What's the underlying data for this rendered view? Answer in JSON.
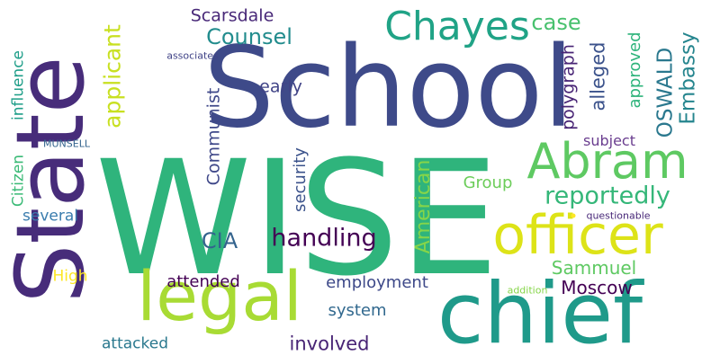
{
  "words": [
    {
      "id": "wise",
      "text": "WISE",
      "color": "#2fb47c"
    },
    {
      "id": "school",
      "text": "School",
      "color": "#3e4a89"
    },
    {
      "id": "state",
      "text": "State",
      "color": "#472c7a"
    },
    {
      "id": "chief",
      "text": "chief",
      "color": "#1f9a8a"
    },
    {
      "id": "legal",
      "text": "legal",
      "color": "#a8db34"
    },
    {
      "id": "officer",
      "text": "officer",
      "color": "#dde318"
    },
    {
      "id": "abram",
      "text": "Abram",
      "color": "#5ec962"
    },
    {
      "id": "chayes",
      "text": "Chayes",
      "color": "#20a386"
    },
    {
      "id": "reportedly",
      "text": "reportedly",
      "color": "#35b779"
    },
    {
      "id": "handling",
      "text": "handling",
      "color": "#440154"
    },
    {
      "id": "counsel",
      "text": "Counsel",
      "color": "#228c8d"
    },
    {
      "id": "case",
      "text": "case",
      "color": "#48c16e"
    },
    {
      "id": "applicant",
      "text": "applicant",
      "color": "#c8e020"
    },
    {
      "id": "oswald",
      "text": "OSWALD",
      "color": "#2a788e"
    },
    {
      "id": "embassy",
      "text": "Embassy",
      "color": "#25858e"
    },
    {
      "id": "polygraph",
      "text": "polygraph",
      "color": "#482475"
    },
    {
      "id": "alleged",
      "text": "alleged",
      "color": "#3b528b"
    },
    {
      "id": "approved",
      "text": "approved",
      "color": "#2fb47c"
    },
    {
      "id": "scarsdale",
      "text": "Scarsdale",
      "color": "#482878"
    },
    {
      "id": "early",
      "text": "early",
      "color": "#414487"
    },
    {
      "id": "communist",
      "text": "Communist",
      "color": "#3f4889"
    },
    {
      "id": "security",
      "text": "security",
      "color": "#3b528b"
    },
    {
      "id": "american",
      "text": "American",
      "color": "#86d549"
    },
    {
      "id": "cia",
      "text": "CIA",
      "color": "#33638d"
    },
    {
      "id": "group",
      "text": "Group",
      "color": "#6ccd5a"
    },
    {
      "id": "subject",
      "text": "subject",
      "color": "#6a3d8f"
    },
    {
      "id": "citizen",
      "text": "Citizen",
      "color": "#3aba76"
    },
    {
      "id": "influence",
      "text": "influence",
      "color": "#1f9e89"
    },
    {
      "id": "several",
      "text": "several",
      "color": "#3b7dae"
    },
    {
      "id": "high",
      "text": "High",
      "color": "#fde725"
    },
    {
      "id": "attended",
      "text": "attended",
      "color": "#440154"
    },
    {
      "id": "employment",
      "text": "employment",
      "color": "#3e4989"
    },
    {
      "id": "moscow",
      "text": "Moscow",
      "color": "#440154"
    },
    {
      "id": "sammuel",
      "text": "Sammuel",
      "color": "#5ec962"
    },
    {
      "id": "system",
      "text": "system",
      "color": "#31688e"
    },
    {
      "id": "involved",
      "text": "involved",
      "color": "#482475"
    },
    {
      "id": "attacked",
      "text": "attacked",
      "color": "#2a788e"
    },
    {
      "id": "associates",
      "text": "associates",
      "color": "#414487"
    },
    {
      "id": "munsell",
      "text": "MUNSELL",
      "color": "#33638d"
    },
    {
      "id": "questionable",
      "text": "questionable",
      "color": "#482878"
    },
    {
      "id": "addition",
      "text": "addition",
      "color": "#86d549"
    }
  ]
}
